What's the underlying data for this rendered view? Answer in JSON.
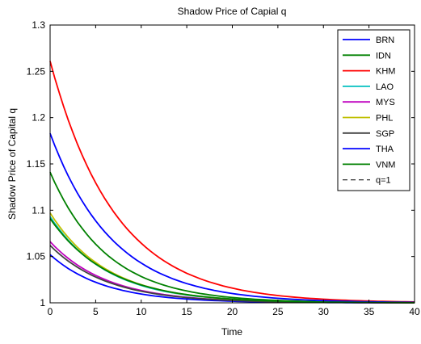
{
  "chart_data": {
    "type": "line",
    "title": "Shadow Price of Capial q",
    "xlabel": "Time",
    "ylabel": "Shadow Price of Capital q",
    "xlim": [
      0,
      40
    ],
    "ylim": [
      1,
      1.3
    ],
    "grid": false,
    "legend_position": "top-right",
    "x_ticks": [
      "0",
      "5",
      "10",
      "15",
      "20",
      "25",
      "30",
      "35",
      "40"
    ],
    "y_ticks": [
      "1",
      "1.05",
      "1.1",
      "1.15",
      "1.2",
      "1.25",
      "1.3"
    ],
    "series": [
      {
        "name": "BRN",
        "color": "#0000ff",
        "start": 1.052,
        "decay": 0.17
      },
      {
        "name": "IDN",
        "color": "#008000",
        "start": 1.141,
        "decay": 0.16
      },
      {
        "name": "KHM",
        "color": "#ff0000",
        "start": 1.261,
        "decay": 0.14
      },
      {
        "name": "LAO",
        "color": "#00bfbf",
        "start": 1.093,
        "decay": 0.16
      },
      {
        "name": "MYS",
        "color": "#bf00bf",
        "start": 1.066,
        "decay": 0.16
      },
      {
        "name": "PHL",
        "color": "#bfbf00",
        "start": 1.097,
        "decay": 0.16
      },
      {
        "name": "SGP",
        "color": "#404040",
        "start": 1.062,
        "decay": 0.16
      },
      {
        "name": "THA",
        "color": "#0000ff",
        "start": 1.183,
        "decay": 0.145
      },
      {
        "name": "VNM",
        "color": "#008000",
        "start": 1.091,
        "decay": 0.155
      },
      {
        "name": "q=1",
        "color": "#000000",
        "start": 1.0,
        "decay": 0,
        "dashed": true
      }
    ]
  }
}
